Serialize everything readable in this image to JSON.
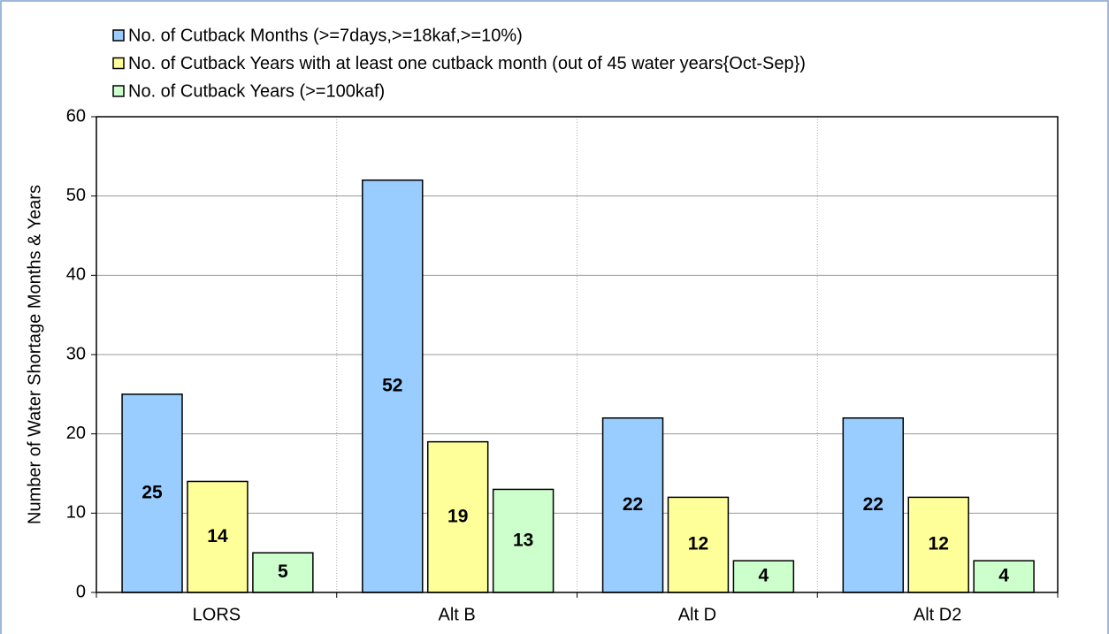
{
  "chart_data": {
    "type": "bar",
    "y_label": "Number of Water Shortage Months & Years",
    "categories": [
      "LORS",
      "Alt B",
      "Alt D",
      "Alt D2"
    ],
    "series": [
      {
        "name": "No. of Cutback Months (>=7days,>=18kaf,>=10%)",
        "color": "#99ccff",
        "values": [
          25,
          52,
          22,
          22
        ]
      },
      {
        "name": "No. of Cutback Years with at least one cutback month (out of 45 water years{Oct-Sep})",
        "color": "#ffff99",
        "values": [
          14,
          19,
          12,
          12
        ]
      },
      {
        "name": "No. of Cutback Years (>=100kaf)",
        "color": "#ccffcc",
        "values": [
          5,
          13,
          4,
          4
        ]
      }
    ],
    "ylim": [
      0,
      60
    ],
    "yticks": [
      0,
      10,
      20,
      30,
      40,
      50,
      60
    ],
    "grid": true,
    "legend": "top"
  }
}
